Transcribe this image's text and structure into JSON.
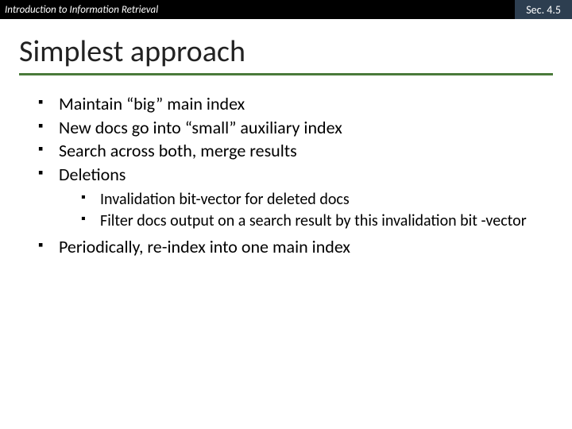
{
  "header": {
    "left": "Introduction to Information Retrieval",
    "right": "Sec. 4.5"
  },
  "title": "Simplest approach",
  "colors": {
    "header_bg": "#000000",
    "header_right_bg": "#2d3e50",
    "underline": "#4a7a3a",
    "text": "#000000"
  },
  "bullets": {
    "b1": "Maintain “big” main index",
    "b2": "New docs go into “small” auxiliary index",
    "b3": "Search across both, merge results",
    "b4": "Deletions",
    "b4_sub1": "Invalidation bit-vector for deleted docs",
    "b4_sub2": "Filter docs output on a search result by this invalidation bit -vector",
    "b5": "Periodically, re-index into one main index"
  },
  "typography": {
    "title_fontsize": 38,
    "body_fontsize": 22,
    "sub_fontsize": 20,
    "header_fontsize": 13
  }
}
